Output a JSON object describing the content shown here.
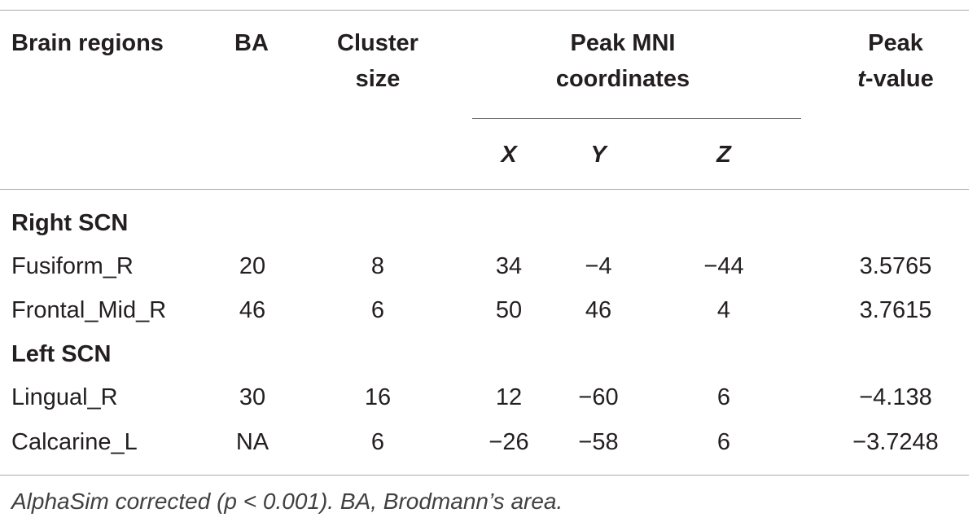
{
  "table": {
    "headers": {
      "brain_regions": "Brain regions",
      "ba": "BA",
      "cluster_line1": "Cluster",
      "cluster_line2": "size",
      "peak_mni_line1": "Peak MNI",
      "peak_mni_line2": "coordinates",
      "x": "X",
      "y": "Y",
      "z": "Z",
      "peak_t_line1": "Peak",
      "peak_t_italic": "t",
      "peak_t_suffix": "-value"
    },
    "groups": [
      {
        "label": "Right SCN",
        "rows": [
          {
            "region": "Fusiform_R",
            "ba": "20",
            "cluster": "8",
            "x": "34",
            "y": "−4",
            "z": "−44",
            "t": "3.5765"
          },
          {
            "region": "Frontal_Mid_R",
            "ba": "46",
            "cluster": "6",
            "x": "50",
            "y": "46",
            "z": "4",
            "t": "3.7615"
          }
        ]
      },
      {
        "label": "Left SCN",
        "rows": [
          {
            "region": "Lingual_R",
            "ba": "30",
            "cluster": "16",
            "x": "12",
            "y": "−60",
            "z": "6",
            "t": "−4.138"
          },
          {
            "region": "Calcarine_L",
            "ba": "NA",
            "cluster": "6",
            "x": "−26",
            "y": "−58",
            "z": "6",
            "t": "−3.7248"
          }
        ]
      }
    ],
    "footnote": "AlphaSim corrected (p < 0.001). BA, Brodmann’s area."
  }
}
